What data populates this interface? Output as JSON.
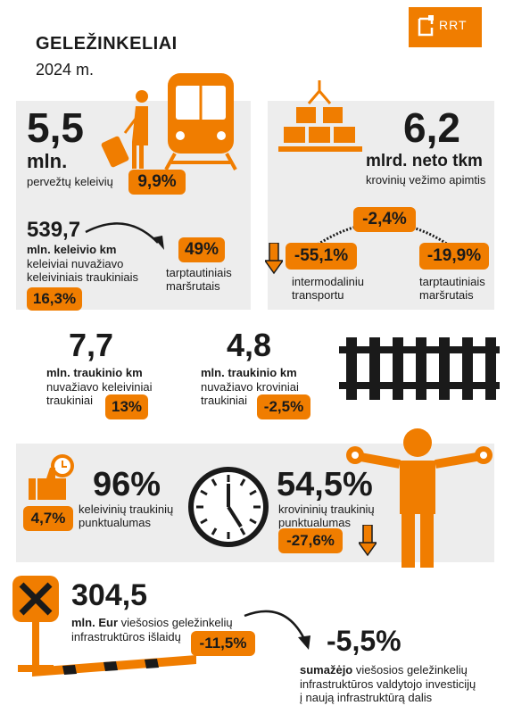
{
  "header": {
    "title": "GELEŽINKELIAI",
    "year": "2024 m.",
    "logo_text": "RRT"
  },
  "colors": {
    "accent": "#f07d00",
    "panel": "#ededed",
    "text": "#1a1a1a"
  },
  "passengers": {
    "value": "5,5",
    "unit": "mln.",
    "label": "pervežtų keleivių",
    "change": "9,9%",
    "km_value": "539,7",
    "km_unit": "mln. keleivio km",
    "km_label_1": "keleiviai nuvažiavo",
    "km_label_2": "keleiviniais traukiniais",
    "km_change": "16,3%",
    "intl_share": "49%",
    "intl_label_1": "tarptautiniais",
    "intl_label_2": "maršrutais"
  },
  "freight": {
    "value": "6,2",
    "unit": "mlrd. neto tkm",
    "label": "krovinių vežimo apimtis",
    "change": "-2,4%",
    "intermodal_change": "-55,1%",
    "intermodal_label_1": "intermodaliniu",
    "intermodal_label_2": "transportu",
    "intl_change": "-19,9%",
    "intl_label_1": "tarptautiniais",
    "intl_label_2": "maršrutais"
  },
  "train_km": {
    "passenger_value": "7,7",
    "passenger_unit": "mln. traukinio km",
    "passenger_label_1": "nuvažiavo keleiviniai",
    "passenger_label_2": "traukiniai",
    "passenger_change": "13%",
    "freight_value": "4,8",
    "freight_unit": "mln. traukinio km",
    "freight_label_1": "nuvažiavo kroviniai",
    "freight_label_2": "traukiniai",
    "freight_change": "-2,5%"
  },
  "punctuality": {
    "passenger_value": "96%",
    "passenger_label_1": "keleivinių traukinių",
    "passenger_label_2": "punktualumas",
    "passenger_change": "4,7%",
    "freight_value": "54,5%",
    "freight_label_1": "krovininių traukinių",
    "freight_label_2": "punktualumas",
    "freight_change": "-27,6%"
  },
  "infrastructure": {
    "value": "304,5",
    "unit": "mln. Eur",
    "label_1": "viešosios geležinkelių",
    "label_2": "infrastruktūros išlaidų",
    "change": "-11,5%",
    "invest_value": "-5,5%",
    "invest_bold": "sumažėjo",
    "invest_label_1": "viešosios geležinkelių",
    "invest_label_2": "infrastruktūros valdytojo investicijų",
    "invest_label_3": "į naują infrastruktūrą dalis"
  }
}
